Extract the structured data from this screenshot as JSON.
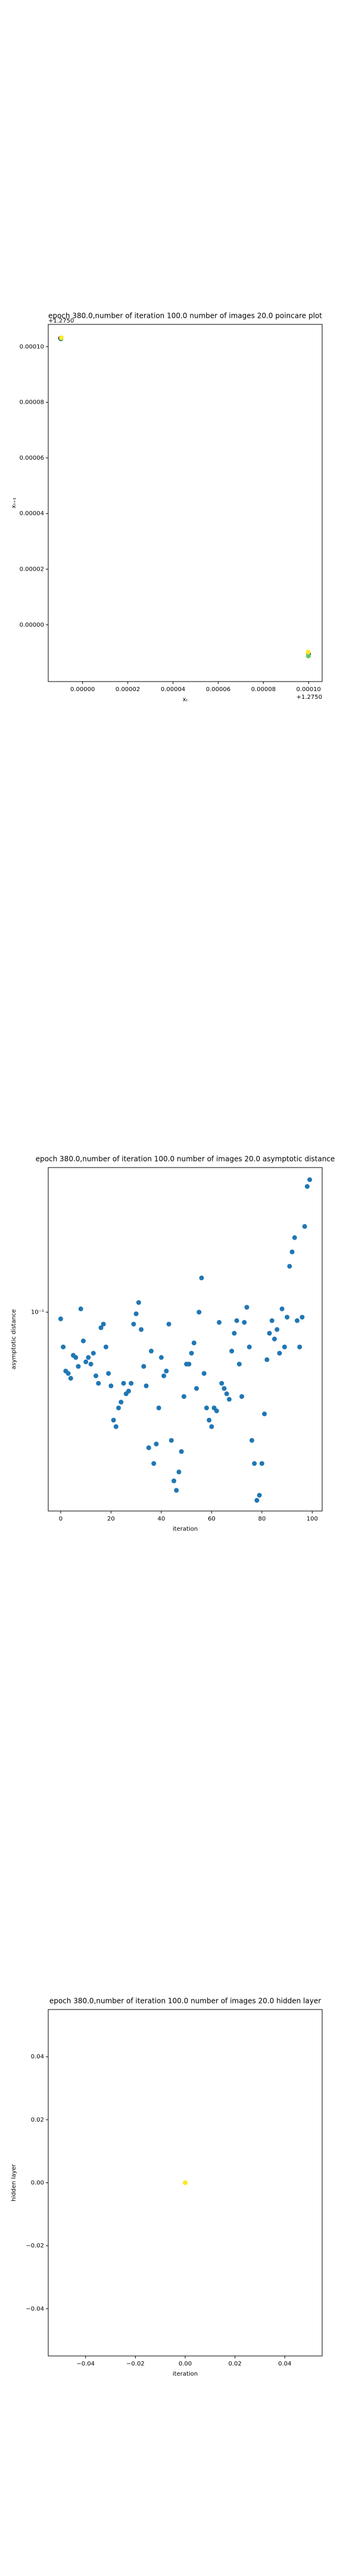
{
  "chart_data": [
    {
      "type": "scatter",
      "title": "epoch 380.0,number of iteration 100.0 number of images 20.0 poincare plot",
      "xlabel": "xₜ",
      "ylabel": "xₜ₊₁",
      "x_offset_label": "+1.2750",
      "y_offset_label": "+1.2750",
      "x": [
        -9.8e-06,
        -9.6e-06,
        -9.4e-06,
        0.0001,
        9.99e-05,
        9.98e-05
      ],
      "y": [
        0.000103,
        0.0001028,
        0.0001032,
        -1.05e-05,
        -1.12e-05,
        -9.8e-06
      ],
      "colors": [
        "#440154",
        "#21918c",
        "#fde725",
        "#3b528b",
        "#5ec962",
        "#fde725"
      ],
      "xlim": [
        -1.52e-05,
        0.000106
      ],
      "ylim": [
        -2.04e-05,
        0.000108
      ],
      "xticks": [
        {
          "value": 0,
          "label": "0.00000"
        },
        {
          "value": 2e-05,
          "label": "0.00002"
        },
        {
          "value": 4e-05,
          "label": "0.00004"
        },
        {
          "value": 6e-05,
          "label": "0.00006"
        },
        {
          "value": 8e-05,
          "label": "0.00008"
        },
        {
          "value": 0.0001,
          "label": "0.00010"
        }
      ],
      "yticks": [
        {
          "value": 0,
          "label": "0.00000"
        },
        {
          "value": 2e-05,
          "label": "0.00002"
        },
        {
          "value": 4e-05,
          "label": "0.00004"
        },
        {
          "value": 6e-05,
          "label": "0.00006"
        },
        {
          "value": 8e-05,
          "label": "0.00008"
        },
        {
          "value": 0.0001,
          "label": "0.00010"
        }
      ]
    },
    {
      "type": "scatter",
      "title": "epoch 380.0,number of iteration 100.0  number of images 20.0 asymptotic distance",
      "xlabel": "iteration",
      "ylabel": "asymptotic distance",
      "ylog": true,
      "color": "#1f77b4",
      "x": [
        0,
        1,
        2,
        3,
        4,
        5,
        6,
        7,
        8,
        9,
        10,
        11,
        12,
        13,
        14,
        15,
        16,
        17,
        18,
        19,
        20,
        21,
        22,
        23,
        24,
        25,
        26,
        27,
        28,
        29,
        30,
        31,
        32,
        33,
        34,
        35,
        36,
        37,
        38,
        39,
        40,
        41,
        42,
        43,
        44,
        45,
        46,
        47,
        48,
        49,
        50,
        51,
        52,
        53,
        54,
        55,
        56,
        57,
        58,
        59,
        60,
        61,
        62,
        63,
        64,
        65,
        66,
        67,
        68,
        69,
        70,
        71,
        72,
        73,
        74,
        75,
        76,
        77,
        78,
        79,
        80,
        81,
        82,
        83,
        84,
        85,
        86,
        87,
        88,
        89,
        90,
        91,
        92,
        93,
        94,
        95,
        96,
        97,
        98,
        99
      ],
      "y": [
        0.096,
        0.081,
        0.07,
        0.069,
        0.067,
        0.077,
        0.076,
        0.072,
        0.102,
        0.084,
        0.074,
        0.076,
        0.073,
        0.078,
        0.068,
        0.065,
        0.091,
        0.093,
        0.081,
        0.069,
        0.064,
        0.052,
        0.05,
        0.056,
        0.058,
        0.065,
        0.061,
        0.062,
        0.065,
        0.093,
        0.099,
        0.106,
        0.09,
        0.072,
        0.064,
        0.044,
        0.079,
        0.04,
        0.045,
        0.056,
        0.076,
        0.068,
        0.07,
        0.093,
        0.046,
        0.036,
        0.034,
        0.038,
        0.043,
        0.06,
        0.073,
        0.073,
        0.078,
        0.083,
        0.063,
        0.1,
        0.123,
        0.069,
        0.056,
        0.052,
        0.05,
        0.056,
        0.055,
        0.094,
        0.065,
        0.063,
        0.061,
        0.059,
        0.079,
        0.088,
        0.095,
        0.073,
        0.06,
        0.094,
        0.103,
        0.081,
        0.046,
        0.04,
        0.032,
        0.033,
        0.04,
        0.054,
        0.075,
        0.088,
        0.095,
        0.085,
        0.09,
        0.078,
        0.102,
        0.081,
        0.097,
        0.132,
        0.144,
        0.157,
        0.095,
        0.081,
        0.097,
        0.168,
        0.214,
        0.223
      ],
      "xlim": [
        -4.95,
        103.95
      ],
      "ylim": [
        0.03,
        0.24
      ],
      "xticks": [
        0,
        20,
        40,
        60,
        80,
        100
      ],
      "yticks": [
        {
          "value": 0.1,
          "label": "10⁻¹"
        }
      ]
    },
    {
      "type": "scatter",
      "title": "epoch 380.0,number of iteration 100.0  number of images 20.0 hidden layer",
      "xlabel": "iteration",
      "ylabel": "hidden layer",
      "color": "#fde725",
      "x": [
        0
      ],
      "y": [
        0
      ],
      "xlim": [
        -0.055,
        0.055
      ],
      "ylim": [
        -0.055,
        0.055
      ],
      "xticks": [
        {
          "value": -0.04,
          "label": "−0.04"
        },
        {
          "value": -0.02,
          "label": "−0.02"
        },
        {
          "value": 0,
          "label": "0.00"
        },
        {
          "value": 0.02,
          "label": "0.02"
        },
        {
          "value": 0.04,
          "label": "0.04"
        }
      ],
      "yticks": [
        {
          "value": -0.04,
          "label": "−0.04"
        },
        {
          "value": -0.02,
          "label": "−0.02"
        },
        {
          "value": 0,
          "label": "0.00"
        },
        {
          "value": 0.02,
          "label": "0.02"
        },
        {
          "value": 0.04,
          "label": "0.04"
        }
      ]
    }
  ]
}
